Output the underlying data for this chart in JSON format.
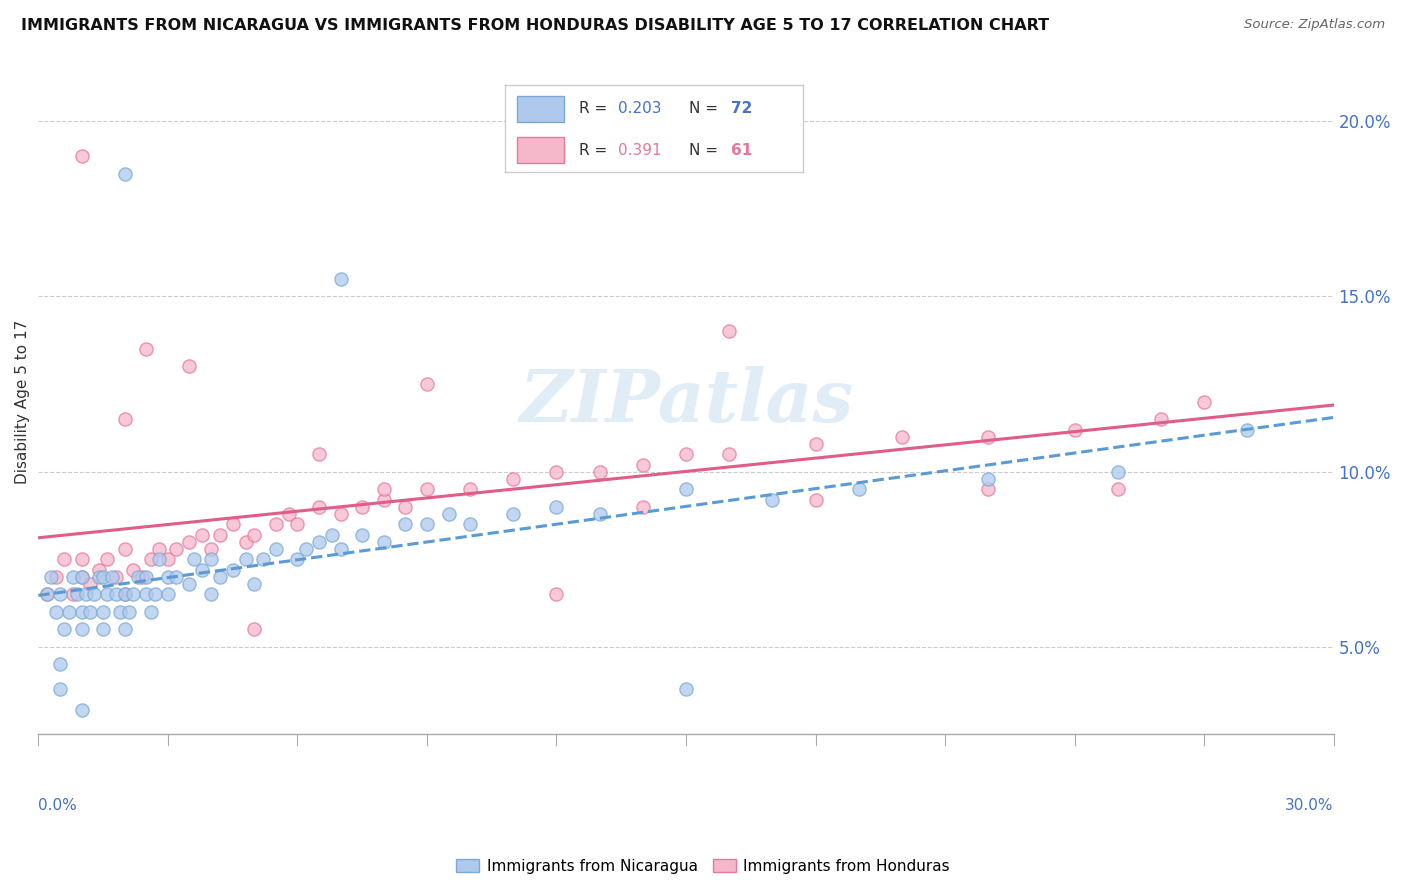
{
  "title": "IMMIGRANTS FROM NICARAGUA VS IMMIGRANTS FROM HONDURAS DISABILITY AGE 5 TO 17 CORRELATION CHART",
  "source": "Source: ZipAtlas.com",
  "ylabel": "Disability Age 5 to 17",
  "xlim": [
    0.0,
    0.3
  ],
  "ylim": [
    0.025,
    0.215
  ],
  "yticks": [
    0.05,
    0.1,
    0.15,
    0.2
  ],
  "ytick_labels": [
    "5.0%",
    "10.0%",
    "15.0%",
    "20.0%"
  ],
  "nicaragua_color": "#aec9ed",
  "nicaragua_edge": "#7aaad4",
  "honduras_color": "#f5b8cb",
  "honduras_edge": "#e8789a",
  "nicaragua_line_color": "#5b9bd5",
  "honduras_line_color": "#e05c8a",
  "right_axis_color": "#4472c4",
  "nicaragua_R": 0.203,
  "nicaragua_N": 72,
  "honduras_R": 0.391,
  "honduras_N": 61,
  "watermark_text": "ZIPatlas",
  "legend_label_nic": "Immigrants from Nicaragua",
  "legend_label_hon": "Immigrants from Honduras",
  "nic_x": [
    0.002,
    0.003,
    0.004,
    0.005,
    0.006,
    0.007,
    0.008,
    0.009,
    0.01,
    0.01,
    0.01,
    0.011,
    0.012,
    0.013,
    0.014,
    0.015,
    0.015,
    0.015,
    0.016,
    0.017,
    0.018,
    0.019,
    0.02,
    0.02,
    0.021,
    0.022,
    0.023,
    0.025,
    0.025,
    0.026,
    0.027,
    0.028,
    0.03,
    0.03,
    0.032,
    0.035,
    0.036,
    0.038,
    0.04,
    0.04,
    0.042,
    0.045,
    0.048,
    0.05,
    0.052,
    0.055,
    0.06,
    0.062,
    0.065,
    0.068,
    0.07,
    0.075,
    0.08,
    0.085,
    0.09,
    0.095,
    0.1,
    0.11,
    0.12,
    0.13,
    0.15,
    0.17,
    0.19,
    0.22,
    0.25,
    0.02,
    0.07,
    0.005,
    0.005,
    0.01,
    0.15,
    0.28
  ],
  "nic_y": [
    0.065,
    0.07,
    0.06,
    0.065,
    0.055,
    0.06,
    0.07,
    0.065,
    0.055,
    0.06,
    0.07,
    0.065,
    0.06,
    0.065,
    0.07,
    0.055,
    0.06,
    0.07,
    0.065,
    0.07,
    0.065,
    0.06,
    0.055,
    0.065,
    0.06,
    0.065,
    0.07,
    0.065,
    0.07,
    0.06,
    0.065,
    0.075,
    0.065,
    0.07,
    0.07,
    0.068,
    0.075,
    0.072,
    0.065,
    0.075,
    0.07,
    0.072,
    0.075,
    0.068,
    0.075,
    0.078,
    0.075,
    0.078,
    0.08,
    0.082,
    0.078,
    0.082,
    0.08,
    0.085,
    0.085,
    0.088,
    0.085,
    0.088,
    0.09,
    0.088,
    0.095,
    0.092,
    0.095,
    0.098,
    0.1,
    0.185,
    0.155,
    0.045,
    0.038,
    0.032,
    0.038,
    0.112
  ],
  "hon_x": [
    0.002,
    0.004,
    0.006,
    0.008,
    0.01,
    0.01,
    0.012,
    0.014,
    0.016,
    0.018,
    0.02,
    0.02,
    0.022,
    0.024,
    0.026,
    0.028,
    0.03,
    0.032,
    0.035,
    0.038,
    0.04,
    0.042,
    0.045,
    0.048,
    0.05,
    0.055,
    0.058,
    0.06,
    0.065,
    0.07,
    0.075,
    0.08,
    0.085,
    0.09,
    0.1,
    0.11,
    0.12,
    0.13,
    0.14,
    0.15,
    0.16,
    0.18,
    0.2,
    0.22,
    0.24,
    0.26,
    0.05,
    0.12,
    0.18,
    0.25,
    0.16,
    0.09,
    0.14,
    0.02,
    0.025,
    0.035,
    0.065,
    0.08,
    0.22,
    0.27,
    0.01
  ],
  "hon_y": [
    0.065,
    0.07,
    0.075,
    0.065,
    0.07,
    0.075,
    0.068,
    0.072,
    0.075,
    0.07,
    0.065,
    0.078,
    0.072,
    0.07,
    0.075,
    0.078,
    0.075,
    0.078,
    0.08,
    0.082,
    0.078,
    0.082,
    0.085,
    0.08,
    0.082,
    0.085,
    0.088,
    0.085,
    0.09,
    0.088,
    0.09,
    0.092,
    0.09,
    0.095,
    0.095,
    0.098,
    0.1,
    0.1,
    0.102,
    0.105,
    0.105,
    0.108,
    0.11,
    0.11,
    0.112,
    0.115,
    0.055,
    0.065,
    0.092,
    0.095,
    0.14,
    0.125,
    0.09,
    0.115,
    0.135,
    0.13,
    0.105,
    0.095,
    0.095,
    0.12,
    0.19
  ]
}
